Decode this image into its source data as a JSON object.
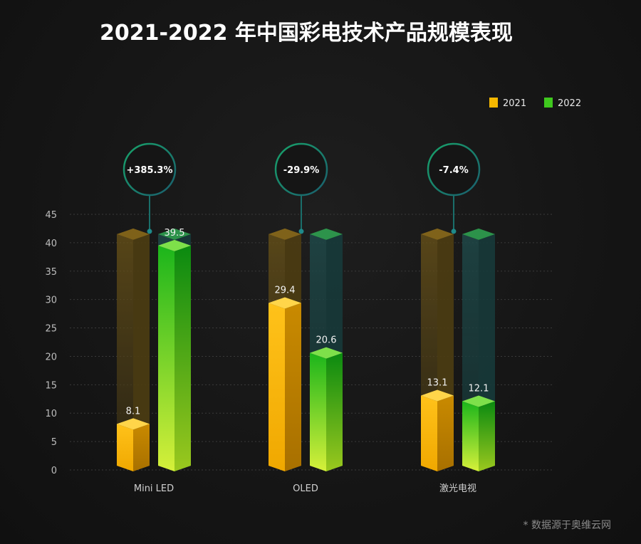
{
  "chart_data": {
    "type": "bar",
    "title": "2021-2022 年中国彩电技术产品规模表现",
    "categories": [
      "Mini LED",
      "OLED",
      "激光电视"
    ],
    "series": [
      {
        "name": "2021",
        "values": [
          8.1,
          29.4,
          13.1
        ],
        "color": "#f5b800"
      },
      {
        "name": "2022",
        "values": [
          39.5,
          20.6,
          12.1
        ],
        "color": "#3fc81e"
      }
    ],
    "growth_labels": [
      "+385.3%",
      "-29.9%",
      "-7.4%"
    ],
    "yticks": [
      "0",
      "5",
      "10",
      "15",
      "20",
      "25",
      "30",
      "35",
      "40",
      "45"
    ],
    "ylim": [
      0,
      45
    ],
    "grid": true,
    "legend": "top-right",
    "source_note": "* 数据源于奥维云网"
  }
}
